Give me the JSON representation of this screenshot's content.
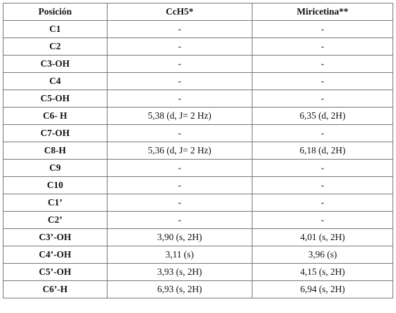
{
  "table": {
    "header": [
      "Posición",
      "CcH5*",
      "Miricetina**"
    ],
    "rows": [
      [
        "C1",
        "-",
        "-"
      ],
      [
        "C2",
        "-",
        "-"
      ],
      [
        "C3-OH",
        "-",
        "-"
      ],
      [
        "C4",
        "-",
        "-"
      ],
      [
        "C5-OH",
        "-",
        "-"
      ],
      [
        "C6- H",
        "5,38 (d, J= 2 Hz)",
        "6,35 (d, 2H)"
      ],
      [
        "C7-OH",
        "-",
        "-"
      ],
      [
        "C8-H",
        "5,36 (d, J= 2 Hz)",
        "6,18 (d, 2H)"
      ],
      [
        "C9",
        "-",
        "-"
      ],
      [
        "C10",
        "-",
        "-"
      ],
      [
        "C1’",
        "-",
        "-"
      ],
      [
        "C2’",
        "-",
        "-"
      ],
      [
        "C3’-OH",
        "3,90 (s, 2H)",
        "4,01 (s, 2H)"
      ],
      [
        "C4’-OH",
        "3,11 (s)",
        "3,96 (s)"
      ],
      [
        "C5’-OH",
        "3,93 (s, 2H)",
        "4,15 (s, 2H)"
      ],
      [
        "C6’-H",
        "6,93 (s, 2H)",
        "6,94 (s, 2H)"
      ]
    ]
  }
}
